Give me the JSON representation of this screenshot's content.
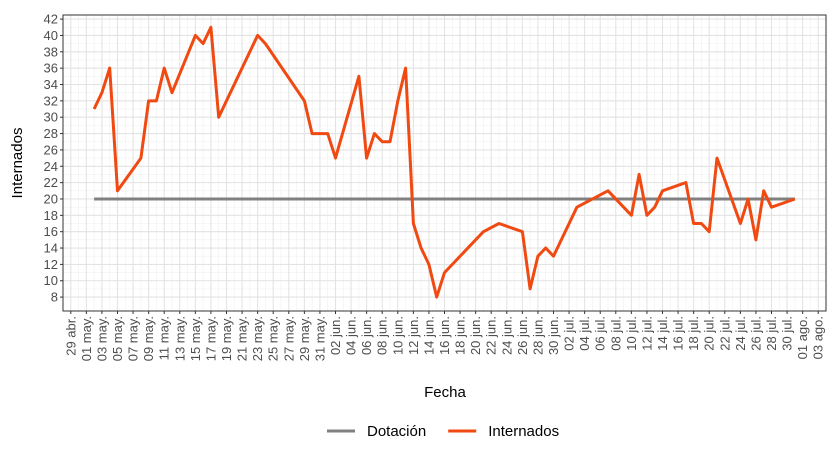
{
  "chart_data": {
    "type": "line",
    "xlabel": "Fecha",
    "ylabel": "Internados",
    "xlim": [
      "28 abr.",
      "04 ago."
    ],
    "xticks": [
      "29 abr.",
      "01 may.",
      "03 may.",
      "05 may.",
      "07 may.",
      "09 may.",
      "11 may.",
      "13 may.",
      "15 may.",
      "17 may.",
      "19 may.",
      "21 may.",
      "23 may.",
      "25 may.",
      "27 may.",
      "29 may.",
      "31 may.",
      "02 jun.",
      "04 jun.",
      "06 jun.",
      "08 jun.",
      "10 jun.",
      "12 jun.",
      "14 jun.",
      "16 jun.",
      "18 jun.",
      "20 jun.",
      "22 jun.",
      "24 jun.",
      "26 jun.",
      "28 jun.",
      "30 jun.",
      "02 jul.",
      "04 jul.",
      "06 jul.",
      "08 jul.",
      "10 jul.",
      "12 jul.",
      "14 jul.",
      "16 jul.",
      "18 jul.",
      "20 jul.",
      "22 jul.",
      "24 jul.",
      "26 jul.",
      "28 jul.",
      "30 jul.",
      "01 ago.",
      "03 ago."
    ],
    "ylim": [
      6.3,
      42.5
    ],
    "yticks": [
      8,
      10,
      12,
      14,
      16,
      18,
      20,
      22,
      24,
      26,
      28,
      30,
      32,
      34,
      36,
      38,
      40,
      42
    ],
    "grid": true,
    "legend": "bottom",
    "series": [
      {
        "name": "Dotación",
        "color": "#808080",
        "x": [
          "02 may.",
          "31 jul."
        ],
        "values": [
          20,
          20
        ]
      },
      {
        "name": "Internados",
        "color": "#f04a12",
        "x": [
          "02 may.",
          "03 may.",
          "04 may.",
          "05 may.",
          "08 may.",
          "09 may.",
          "10 may.",
          "11 may.",
          "12 may.",
          "15 may.",
          "16 may.",
          "17 may.",
          "18 may.",
          "23 may.",
          "24 may.",
          "29 may.",
          "30 may.",
          "01 jun.",
          "02 jun.",
          "05 jun.",
          "06 jun.",
          "07 jun.",
          "08 jun.",
          "09 jun.",
          "10 jun.",
          "11 jun.",
          "12 jun.",
          "13 jun.",
          "14 jun.",
          "15 jun.",
          "16 jun.",
          "21 jun.",
          "23 jun.",
          "26 jun.",
          "27 jun.",
          "28 jun.",
          "29 jun.",
          "30 jun.",
          "03 jul.",
          "07 jul.",
          "10 jul.",
          "11 jul.",
          "12 jul.",
          "13 jul.",
          "14 jul.",
          "17 jul.",
          "18 jul.",
          "19 jul.",
          "20 jul.",
          "21 jul.",
          "24 jul.",
          "25 jul.",
          "26 jul.",
          "27 jul.",
          "28 jul.",
          "31 jul."
        ],
        "values": [
          31,
          33,
          36,
          21,
          25,
          32,
          32,
          36,
          33,
          40,
          39,
          41,
          30,
          40,
          39,
          32,
          28,
          28,
          25,
          35,
          25,
          28,
          27,
          27,
          32,
          36,
          17,
          14,
          12,
          8,
          11,
          16,
          17,
          16,
          9,
          13,
          14,
          13,
          19,
          21,
          18,
          23,
          18,
          19,
          21,
          22,
          17,
          17,
          16,
          25,
          17,
          20,
          15,
          21,
          19,
          20
        ]
      }
    ]
  }
}
